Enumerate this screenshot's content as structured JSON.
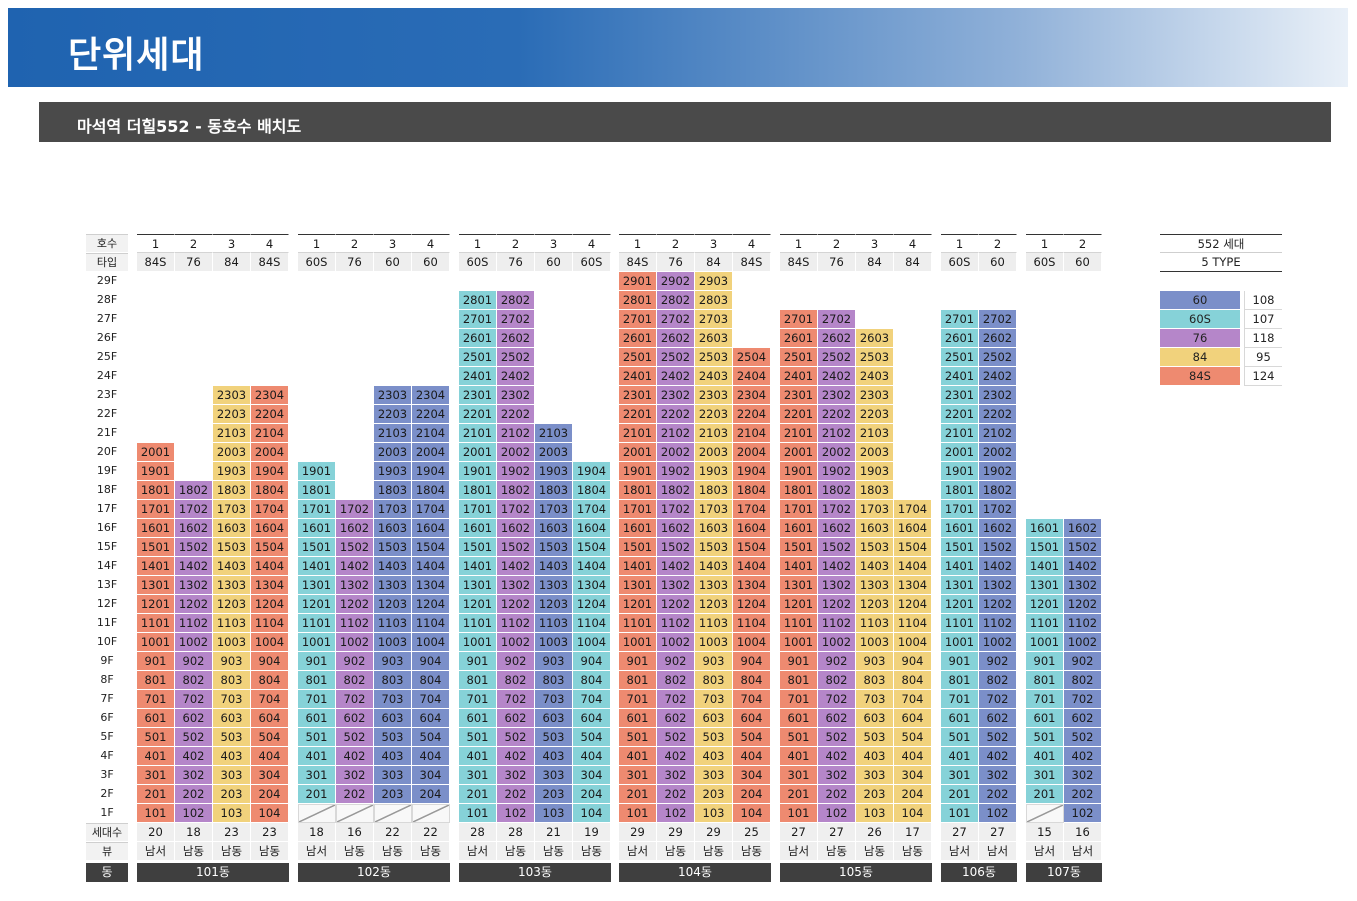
{
  "header": {
    "title": "단위세대",
    "subtitle": "마석역 더힐552 - 동호수 배치도"
  },
  "row_labels": {
    "ho": "호수",
    "type": "타입",
    "units": "세대수",
    "view": "뷰",
    "dong": "동"
  },
  "floors": [
    "29F",
    "28F",
    "27F",
    "26F",
    "25F",
    "24F",
    "23F",
    "22F",
    "21F",
    "20F",
    "19F",
    "18F",
    "17F",
    "16F",
    "15F",
    "14F",
    "13F",
    "12F",
    "11F",
    "10F",
    "9F",
    "8F",
    "7F",
    "6F",
    "5F",
    "4F",
    "3F",
    "2F",
    "1F"
  ],
  "colors": {
    "60": "#7b8fc9",
    "60S": "#86d2d8",
    "76": "#b586c9",
    "84": "#f1d27c",
    "84S": "#ee8a70"
  },
  "buildings": [
    {
      "name": "101동",
      "columns": [
        {
          "ho": "1",
          "type": "84S",
          "top": 20,
          "count": "20",
          "view": "남서"
        },
        {
          "ho": "2",
          "type": "76",
          "top": 18,
          "count": "18",
          "view": "남동"
        },
        {
          "ho": "3",
          "type": "84",
          "top": 23,
          "count": "23",
          "view": "남동"
        },
        {
          "ho": "4",
          "type": "84S",
          "top": 23,
          "count": "23",
          "view": "남동"
        }
      ]
    },
    {
      "name": "102동",
      "columns": [
        {
          "ho": "1",
          "type": "60S",
          "top": 19,
          "count": "18",
          "view": "남서",
          "skip1": true
        },
        {
          "ho": "2",
          "type": "76",
          "top": 17,
          "count": "16",
          "view": "남동",
          "skip1": true
        },
        {
          "ho": "3",
          "type": "60",
          "top": 23,
          "count": "22",
          "view": "남동",
          "skip1": true
        },
        {
          "ho": "4",
          "type": "60",
          "top": 23,
          "count": "22",
          "view": "남동",
          "skip1": true
        }
      ]
    },
    {
      "name": "103동",
      "columns": [
        {
          "ho": "1",
          "type": "60S",
          "top": 28,
          "count": "28",
          "view": "남서"
        },
        {
          "ho": "2",
          "type": "76",
          "top": 28,
          "count": "28",
          "view": "남동"
        },
        {
          "ho": "3",
          "type": "60",
          "top": 21,
          "count": "21",
          "view": "남동"
        },
        {
          "ho": "4",
          "type": "60S",
          "top": 19,
          "count": "19",
          "view": "남동"
        }
      ]
    },
    {
      "name": "104동",
      "columns": [
        {
          "ho": "1",
          "type": "84S",
          "top": 29,
          "count": "29",
          "view": "남서"
        },
        {
          "ho": "2",
          "type": "76",
          "top": 29,
          "count": "29",
          "view": "남동"
        },
        {
          "ho": "3",
          "type": "84",
          "top": 29,
          "count": "29",
          "view": "남동"
        },
        {
          "ho": "4",
          "type": "84S",
          "top": 25,
          "count": "25",
          "view": "남동"
        }
      ]
    },
    {
      "name": "105동",
      "columns": [
        {
          "ho": "1",
          "type": "84S",
          "top": 27,
          "count": "27",
          "view": "남서"
        },
        {
          "ho": "2",
          "type": "76",
          "top": 27,
          "count": "27",
          "view": "남동"
        },
        {
          "ho": "3",
          "type": "84",
          "top": 26,
          "count": "26",
          "view": "남동"
        },
        {
          "ho": "4",
          "type": "84",
          "top": 17,
          "count": "17",
          "view": "남동"
        }
      ]
    },
    {
      "name": "106동",
      "columns": [
        {
          "ho": "1",
          "type": "60S",
          "top": 27,
          "count": "27",
          "view": "남서"
        },
        {
          "ho": "2",
          "type": "60",
          "top": 27,
          "count": "27",
          "view": "남서"
        }
      ]
    },
    {
      "name": "107동",
      "columns": [
        {
          "ho": "1",
          "type": "60S",
          "top": 16,
          "count": "15",
          "view": "남서",
          "skip1": true
        },
        {
          "ho": "2",
          "type": "60",
          "top": 16,
          "count": "16",
          "view": "남서"
        }
      ]
    }
  ],
  "legend": {
    "total": "552 세대",
    "types": "5 TYPE",
    "items": [
      {
        "type": "60",
        "count": "108"
      },
      {
        "type": "60S",
        "count": "107"
      },
      {
        "type": "76",
        "count": "118"
      },
      {
        "type": "84",
        "count": "95"
      },
      {
        "type": "84S",
        "count": "124"
      }
    ]
  }
}
